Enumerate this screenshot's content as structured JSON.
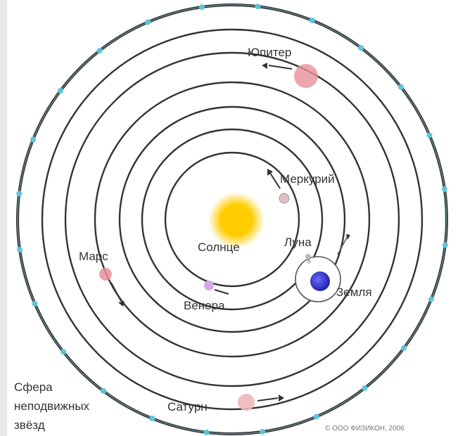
{
  "labels": {
    "sun": "Солнце",
    "mercury": "Меркурий",
    "venus": "Венера",
    "moon": "Луна",
    "earth": "Земля",
    "mars": "Марс",
    "jupiter": "Юпитер",
    "saturn": "Сатурн",
    "fixed_stars_line1": "Сфера",
    "fixed_stars_line2": "неподвижных",
    "fixed_stars_line3": "звёзд",
    "earth_symbol": "♁"
  },
  "copyright": "© ООО ФИЗИКОН, 2006",
  "colors": {
    "orbit": "#333333",
    "outer_sphere": "#222222",
    "stars": "#5fc4dc",
    "sun": "#ffcc00",
    "earth": "#3333cc",
    "jupiter": "#e8909a",
    "mars": "#e8909a",
    "venus": "#d9a6e6",
    "saturn": "#f0b0b0",
    "mercury": "#d9b0b0"
  }
}
